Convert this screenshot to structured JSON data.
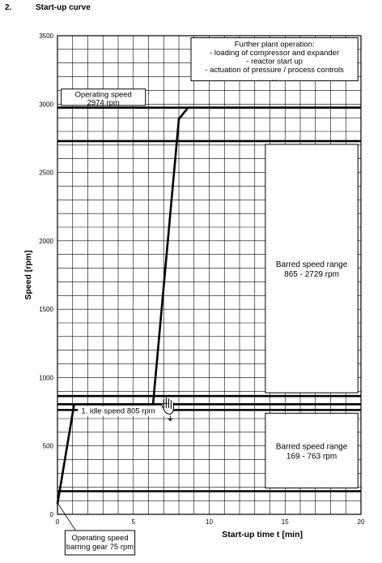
{
  "header": {
    "section_number": "2.",
    "title": "Start-up curve"
  },
  "chart_data": {
    "type": "line",
    "xlabel": "Start-up time t [min]",
    "ylabel": "Speed [rpm]",
    "xlim": [
      0,
      20
    ],
    "ylim": [
      0,
      3500
    ],
    "x_ticks": [
      0,
      5,
      10,
      15,
      20
    ],
    "y_ticks": [
      0,
      500,
      1000,
      1500,
      2000,
      2500,
      3000,
      3500
    ],
    "grid": true,
    "series": [
      {
        "points": [
          [
            0,
            75
          ],
          [
            1.1,
            805
          ],
          [
            6.3,
            805
          ],
          [
            8.0,
            2890
          ],
          [
            8.6,
            2974
          ],
          [
            20,
            2974
          ]
        ]
      }
    ],
    "reference_lines": [
      {
        "y": 2974
      },
      {
        "y": 2729
      },
      {
        "y": 865
      },
      {
        "y": 805
      },
      {
        "y": 763
      },
      {
        "y": 169
      }
    ],
    "bands": [
      {
        "from": 865,
        "to": 2729,
        "lines": [
          "Barred speed range",
          "865 - 2729 rpm"
        ]
      },
      {
        "from": 169,
        "to": 763,
        "lines": [
          "Barred speed range",
          "169 - 763 rpm"
        ]
      }
    ],
    "annotations": {
      "operating_speed": [
        "Operating speed",
        "2974 rpm"
      ],
      "further_operation": [
        "Further plant operation:",
        "- loading of compressor and expander",
        "- reactor start up",
        "- actuation of pressure / process controls",
        "..."
      ],
      "idle_speed": "1. idle speed 805 rpm",
      "barring_gear": [
        "Operating speed",
        "barring gear 75 rpm"
      ]
    }
  }
}
